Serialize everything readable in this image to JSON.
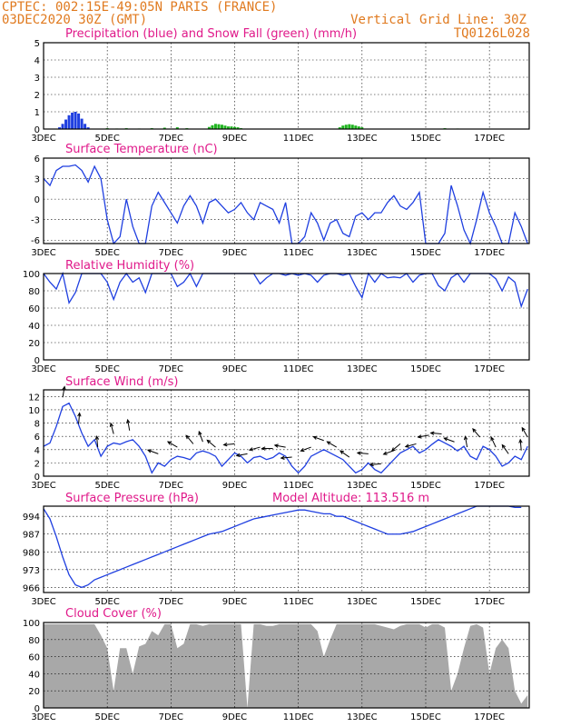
{
  "header": {
    "line1": "CPTEC:   002:15E-49:05N   PARIS (FRANCE)",
    "line2": "03DEC2020 30Z (GMT)",
    "grid_note": "Vertical Grid Line: 30Z",
    "code": "TQ0126L028"
  },
  "colors": {
    "header": "#e07a1f",
    "title": "#e0198a",
    "line": "#1f3fe0",
    "snow": "#1fb41f",
    "cloud": "#a8a8a8"
  },
  "x_axis": {
    "days_range": [
      0,
      15.25
    ],
    "tick_days": [
      0,
      2,
      4,
      6,
      8,
      10,
      12,
      14
    ],
    "tick_labels": [
      "3DEC",
      "5DEC",
      "7DEC",
      "9DEC",
      "11DEC",
      "13DEC",
      "15DEC",
      "17DEC"
    ]
  },
  "chart_data": [
    {
      "type": "bar",
      "title": "Precipitation (blue) and Snow Fall (green) (mm/h)",
      "ylim": [
        0,
        5
      ],
      "yticks": [
        0,
        1,
        2,
        3,
        4,
        5
      ],
      "series": [
        {
          "name": "Precipitation",
          "color": "#1f3fe0",
          "x": [
            0.5,
            0.6,
            0.7,
            0.8,
            0.9,
            1.0,
            1.1,
            1.2,
            1.3,
            1.4
          ],
          "values": [
            0.1,
            0.3,
            0.55,
            0.8,
            0.95,
            1.0,
            0.9,
            0.6,
            0.3,
            0.1
          ]
        },
        {
          "name": "Snow Fall",
          "color": "#1fb41f",
          "x": [
            2.0,
            2.3,
            2.6,
            3.0,
            3.4,
            3.8,
            4.2,
            4.5,
            5.2,
            5.3,
            5.4,
            5.5,
            5.6,
            5.7,
            5.8,
            5.9,
            6.0,
            6.1,
            6.2,
            9.3,
            9.4,
            9.5,
            9.6,
            9.7,
            9.8,
            9.9,
            10.0,
            12.6,
            13.0
          ],
          "values": [
            0.05,
            0.03,
            0.05,
            0.03,
            0.05,
            0.08,
            0.1,
            0.05,
            0.12,
            0.22,
            0.3,
            0.28,
            0.25,
            0.2,
            0.15,
            0.15,
            0.12,
            0.1,
            0.05,
            0.1,
            0.2,
            0.25,
            0.28,
            0.25,
            0.2,
            0.15,
            0.1,
            0.05,
            0.03
          ]
        }
      ]
    },
    {
      "type": "line",
      "title": "Surface Temperature (nC)",
      "ylim": [
        -6.5,
        6
      ],
      "yticks": [
        -6,
        -3,
        0,
        3,
        6
      ],
      "x": [
        0,
        0.2,
        0.4,
        0.6,
        0.8,
        1.0,
        1.2,
        1.4,
        1.6,
        1.8,
        2.0,
        2.2,
        2.4,
        2.6,
        2.8,
        3.0,
        3.2,
        3.4,
        3.6,
        3.8,
        4.0,
        4.2,
        4.4,
        4.6,
        4.8,
        5.0,
        5.2,
        5.4,
        5.6,
        5.8,
        6.0,
        6.2,
        6.4,
        6.6,
        6.8,
        7.0,
        7.2,
        7.4,
        7.6,
        7.8,
        8.0,
        8.2,
        8.4,
        8.6,
        8.8,
        9.0,
        9.2,
        9.4,
        9.6,
        9.8,
        10.0,
        10.2,
        10.4,
        10.6,
        10.8,
        11.0,
        11.2,
        11.4,
        11.6,
        11.8,
        12.0,
        12.2,
        12.4,
        12.6,
        12.8,
        13.0,
        13.2,
        13.4,
        13.6,
        13.8,
        14.0,
        14.2,
        14.4,
        14.6,
        14.8,
        15.0,
        15.2
      ],
      "values": [
        3.0,
        2.0,
        4.2,
        4.8,
        4.8,
        5.0,
        4.2,
        2.5,
        4.8,
        3.0,
        -3.0,
        -6.5,
        -5.5,
        0.0,
        -4.0,
        -6.5,
        -6.5,
        -1.0,
        1.0,
        -0.5,
        -2.0,
        -3.5,
        -1.0,
        0.5,
        -1.0,
        -3.5,
        -0.5,
        0.0,
        -1.0,
        -2.0,
        -1.5,
        -0.5,
        -2.0,
        -3.0,
        -0.5,
        -1.0,
        -1.5,
        -3.5,
        -0.5,
        -6.5,
        -6.5,
        -5.5,
        -2.0,
        -3.5,
        -6.0,
        -3.5,
        -3.0,
        -5.0,
        -5.5,
        -2.5,
        -2.0,
        -3.0,
        -2.0,
        -2.0,
        -0.5,
        0.5,
        -1.0,
        -1.5,
        -0.5,
        1.0,
        -6.5,
        -6.5,
        -6.5,
        -5.0,
        2.0,
        -1.0,
        -4.5,
        -6.5,
        -3.0,
        1.0,
        -2.0,
        -4.0,
        -6.5,
        -6.5,
        -2.0,
        -4.0,
        -6.5
      ]
    },
    {
      "type": "line",
      "title": "Relative Humidity (%)",
      "ylim": [
        0,
        100
      ],
      "yticks": [
        0,
        20,
        40,
        60,
        80,
        100
      ],
      "x": [
        0,
        0.2,
        0.4,
        0.6,
        0.8,
        1.0,
        1.2,
        1.4,
        1.6,
        1.8,
        2.0,
        2.2,
        2.4,
        2.6,
        2.8,
        3.0,
        3.2,
        3.4,
        3.6,
        3.8,
        4.0,
        4.2,
        4.4,
        4.6,
        4.8,
        5.0,
        5.2,
        5.4,
        5.6,
        5.8,
        6.0,
        6.2,
        6.4,
        6.6,
        6.8,
        7.0,
        7.2,
        7.4,
        7.6,
        7.8,
        8.0,
        8.2,
        8.4,
        8.6,
        8.8,
        9.0,
        9.2,
        9.4,
        9.6,
        9.8,
        10.0,
        10.2,
        10.4,
        10.6,
        10.8,
        11.0,
        11.2,
        11.4,
        11.6,
        11.8,
        12.0,
        12.2,
        12.4,
        12.6,
        12.8,
        13.0,
        13.2,
        13.4,
        13.6,
        13.8,
        14.0,
        14.2,
        14.4,
        14.6,
        14.8,
        15.0,
        15.2
      ],
      "values": [
        100,
        90,
        82,
        100,
        66,
        78,
        100,
        100,
        100,
        100,
        90,
        70,
        90,
        100,
        90,
        95,
        78,
        100,
        100,
        100,
        100,
        85,
        90,
        100,
        85,
        100,
        100,
        100,
        100,
        100,
        100,
        100,
        100,
        100,
        88,
        95,
        100,
        100,
        98,
        100,
        98,
        100,
        98,
        90,
        98,
        100,
        100,
        98,
        100,
        85,
        72,
        100,
        90,
        100,
        95,
        96,
        95,
        100,
        90,
        98,
        100,
        100,
        86,
        80,
        95,
        100,
        90,
        100,
        100,
        100,
        100,
        94,
        80,
        96,
        90,
        62,
        82
      ]
    },
    {
      "type": "line",
      "title": "Surface Wind (m/s)",
      "ylim": [
        0,
        13
      ],
      "yticks": [
        0,
        2,
        4,
        6,
        8,
        10,
        12
      ],
      "x": [
        0,
        0.2,
        0.4,
        0.6,
        0.8,
        1.0,
        1.2,
        1.4,
        1.6,
        1.8,
        2.0,
        2.2,
        2.4,
        2.6,
        2.8,
        3.0,
        3.2,
        3.4,
        3.6,
        3.8,
        4.0,
        4.2,
        4.4,
        4.6,
        4.8,
        5.0,
        5.2,
        5.4,
        5.6,
        5.8,
        6.0,
        6.2,
        6.4,
        6.6,
        6.8,
        7.0,
        7.2,
        7.4,
        7.6,
        7.8,
        8.0,
        8.2,
        8.4,
        8.6,
        8.8,
        9.0,
        9.2,
        9.4,
        9.6,
        9.8,
        10.0,
        10.2,
        10.4,
        10.6,
        10.8,
        11.0,
        11.2,
        11.4,
        11.6,
        11.8,
        12.0,
        12.2,
        12.4,
        12.6,
        12.8,
        13.0,
        13.2,
        13.4,
        13.6,
        13.8,
        14.0,
        14.2,
        14.4,
        14.6,
        14.8,
        15.0,
        15.2
      ],
      "values": [
        4.5,
        5.0,
        7.5,
        10.5,
        11.0,
        9.0,
        6.5,
        4.5,
        5.5,
        3.0,
        4.5,
        5.0,
        4.8,
        5.2,
        5.5,
        4.5,
        3.0,
        0.5,
        2.0,
        1.5,
        2.5,
        3.0,
        2.8,
        2.5,
        3.5,
        3.8,
        3.5,
        3.0,
        1.5,
        2.5,
        3.5,
        3.0,
        2.0,
        2.8,
        3.0,
        2.5,
        2.8,
        3.5,
        3.0,
        1.5,
        0.5,
        1.5,
        3.0,
        3.5,
        4.0,
        3.5,
        3.0,
        2.5,
        1.5,
        0.5,
        1.0,
        2.0,
        1.0,
        0.5,
        1.5,
        2.5,
        3.5,
        4.0,
        4.5,
        3.5,
        4.0,
        4.8,
        5.5,
        5.0,
        4.5,
        3.8,
        4.5,
        3.0,
        2.5,
        4.5,
        4.0,
        3.0,
        1.5,
        2.0,
        3.0,
        2.5,
        4.5
      ],
      "vectors_x": [
        0.6,
        1.1,
        1.7,
        2.2,
        2.7,
        3.6,
        4.2,
        4.7,
        5.0,
        5.4,
        6.0,
        6.4,
        6.8,
        7.2,
        7.6,
        7.8,
        8.4,
        8.8,
        9.2,
        9.6,
        10.2,
        10.6,
        11.0,
        11.2,
        11.7,
        12.1,
        12.5,
        12.9,
        13.3,
        13.7,
        14.2,
        14.6,
        15.0,
        15.2
      ],
      "vectors_deg": [
        80,
        85,
        95,
        105,
        100,
        160,
        150,
        130,
        110,
        140,
        185,
        190,
        195,
        180,
        170,
        185,
        200,
        160,
        150,
        145,
        175,
        185,
        200,
        220,
        195,
        190,
        175,
        160,
        100,
        130,
        115,
        125,
        95,
        120
      ]
    },
    {
      "type": "line",
      "title": "Surface Pressure (hPa)",
      "annotation": "Model Altitude: 113.516 m",
      "ylim": [
        964,
        998
      ],
      "yticks": [
        966,
        973,
        980,
        987,
        994
      ],
      "x": [
        0,
        0.2,
        0.4,
        0.6,
        0.8,
        1.0,
        1.2,
        1.4,
        1.6,
        1.8,
        2.0,
        2.2,
        2.4,
        2.6,
        2.8,
        3.0,
        3.2,
        3.4,
        3.6,
        3.8,
        4.0,
        4.2,
        4.4,
        4.6,
        4.8,
        5.0,
        5.2,
        5.4,
        5.6,
        5.8,
        6.0,
        6.2,
        6.4,
        6.6,
        6.8,
        7.0,
        7.2,
        7.4,
        7.6,
        7.8,
        8.0,
        8.2,
        8.4,
        8.6,
        8.8,
        9.0,
        9.2,
        9.4,
        9.6,
        9.8,
        10.0,
        10.2,
        10.4,
        10.6,
        10.8,
        11.0,
        11.2,
        11.4,
        11.6,
        11.8,
        12.0,
        12.2,
        12.4,
        12.6,
        12.8,
        13.0,
        13.2,
        13.4,
        13.6,
        13.8,
        14.0,
        14.2,
        14.4,
        14.6,
        14.8,
        15.0
      ],
      "values": [
        997,
        993,
        986,
        978,
        971,
        967,
        966,
        967,
        969,
        970,
        971,
        972,
        973,
        974,
        975,
        976,
        977,
        978,
        979,
        980,
        981,
        982,
        983,
        984,
        985,
        986,
        987,
        987.5,
        988,
        989,
        990,
        991,
        992,
        993,
        993.5,
        994,
        994.5,
        995,
        995.5,
        996,
        996.5,
        996.5,
        996,
        995.5,
        995,
        995,
        994,
        994,
        993,
        992,
        991,
        990,
        989,
        988,
        987,
        987,
        987,
        987.5,
        988,
        989,
        990,
        991,
        992,
        993,
        994,
        995,
        996,
        997,
        998,
        999,
        1000,
        1000,
        999,
        998,
        997.5,
        997.5
      ]
    },
    {
      "type": "area",
      "title": "Cloud Cover (%)",
      "ylim": [
        0,
        100
      ],
      "yticks": [
        0,
        20,
        40,
        60,
        80,
        100
      ],
      "x": [
        0,
        0.2,
        0.4,
        0.6,
        0.8,
        1.0,
        1.2,
        1.4,
        1.6,
        1.8,
        2.0,
        2.2,
        2.4,
        2.6,
        2.8,
        3.0,
        3.2,
        3.4,
        3.6,
        3.8,
        4.0,
        4.2,
        4.4,
        4.6,
        4.8,
        5.0,
        5.2,
        5.4,
        5.6,
        5.8,
        6.0,
        6.2,
        6.4,
        6.6,
        6.8,
        7.0,
        7.2,
        7.4,
        7.6,
        7.8,
        8.0,
        8.2,
        8.4,
        8.6,
        8.8,
        9.0,
        9.2,
        9.4,
        9.6,
        9.8,
        10.0,
        10.2,
        10.4,
        10.6,
        10.8,
        11.0,
        11.2,
        11.4,
        11.6,
        11.8,
        12.0,
        12.2,
        12.4,
        12.6,
        12.8,
        13.0,
        13.2,
        13.4,
        13.6,
        13.8,
        14.0,
        14.2,
        14.4,
        14.6,
        14.8,
        15.0,
        15.2
      ],
      "values": [
        98,
        98,
        98,
        98,
        98,
        98,
        98,
        98,
        98,
        85,
        70,
        20,
        70,
        70,
        40,
        72,
        75,
        90,
        85,
        98,
        98,
        70,
        75,
        98,
        98,
        96,
        98,
        98,
        98,
        98,
        98,
        98,
        0,
        98,
        98,
        96,
        96,
        98,
        98,
        98,
        98,
        98,
        98,
        90,
        60,
        80,
        98,
        98,
        98,
        98,
        98,
        98,
        98,
        96,
        94,
        92,
        96,
        98,
        98,
        98,
        94,
        98,
        98,
        94,
        20,
        40,
        70,
        96,
        98,
        94,
        40,
        70,
        80,
        70,
        20,
        5,
        15
      ]
    }
  ]
}
